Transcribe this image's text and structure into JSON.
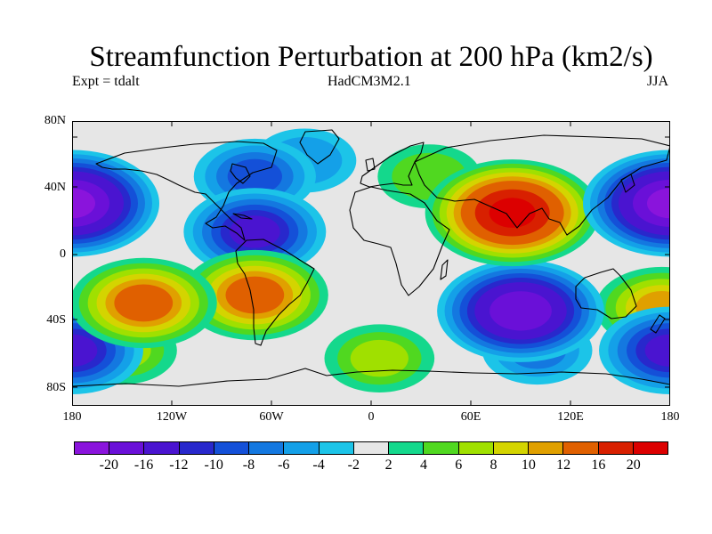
{
  "title": "Streamfunction Perturbation at 200 hPa (km2/s)",
  "subtitle_left": "Expt = tdalt",
  "subtitle_center": "HadCM3M2.1",
  "subtitle_right": "JJA",
  "y_ticks": [
    "80N",
    "40N",
    "0",
    "40S",
    "80S"
  ],
  "x_ticks": [
    "180",
    "120W",
    "60W",
    "0",
    "60E",
    "120E",
    "180"
  ],
  "colorbar": {
    "colors": [
      "#8a14dc",
      "#6a10d8",
      "#4a14d0",
      "#2828cc",
      "#1450d8",
      "#1478e0",
      "#14a0e8",
      "#1cc4e8",
      "#e6e6e6",
      "#14d88c",
      "#50d820",
      "#a0e000",
      "#d4d400",
      "#e0a000",
      "#e06000",
      "#d82000",
      "#dc0000"
    ],
    "labels": [
      "-20",
      "-16",
      "-12",
      "-10",
      "-8",
      "-6",
      "-4",
      "-2",
      "2",
      "4",
      "6",
      "8",
      "10",
      "12",
      "16",
      "20"
    ]
  },
  "map_data": {
    "type": "filled-contour",
    "projection": "cylindrical-equidistant",
    "lon_range": [
      -180,
      180
    ],
    "lat_range": [
      -90,
      90
    ],
    "background_color": "#e6e6e6",
    "anomalies": [
      {
        "lon": 85,
        "lat": 32,
        "amplitude": 20
      },
      {
        "lon": 35,
        "lat": 55,
        "amplitude": 5
      },
      {
        "lon": -70,
        "lat": -20,
        "amplitude": 13
      },
      {
        "lon": -137,
        "lat": -25,
        "amplitude": 13
      },
      {
        "lon": 175,
        "lat": -28,
        "amplitude": 10
      },
      {
        "lon": 5,
        "lat": -60,
        "amplitude": 6
      },
      {
        "lon": -150,
        "lat": -55,
        "amplitude": 6
      },
      {
        "lon": 90,
        "lat": -30,
        "amplitude": -18
      },
      {
        "lon": -180,
        "lat": 38,
        "amplitude": -20
      },
      {
        "lon": 180,
        "lat": 38,
        "amplitude": -20
      },
      {
        "lon": -70,
        "lat": 20,
        "amplitude": -12
      },
      {
        "lon": -70,
        "lat": 55,
        "amplitude": -8
      },
      {
        "lon": -180,
        "lat": -55,
        "amplitude": -12
      },
      {
        "lon": 180,
        "lat": -55,
        "amplitude": -12
      },
      {
        "lon": 100,
        "lat": -55,
        "amplitude": -6
      },
      {
        "lon": -40,
        "lat": 65,
        "amplitude": -5
      }
    ]
  }
}
